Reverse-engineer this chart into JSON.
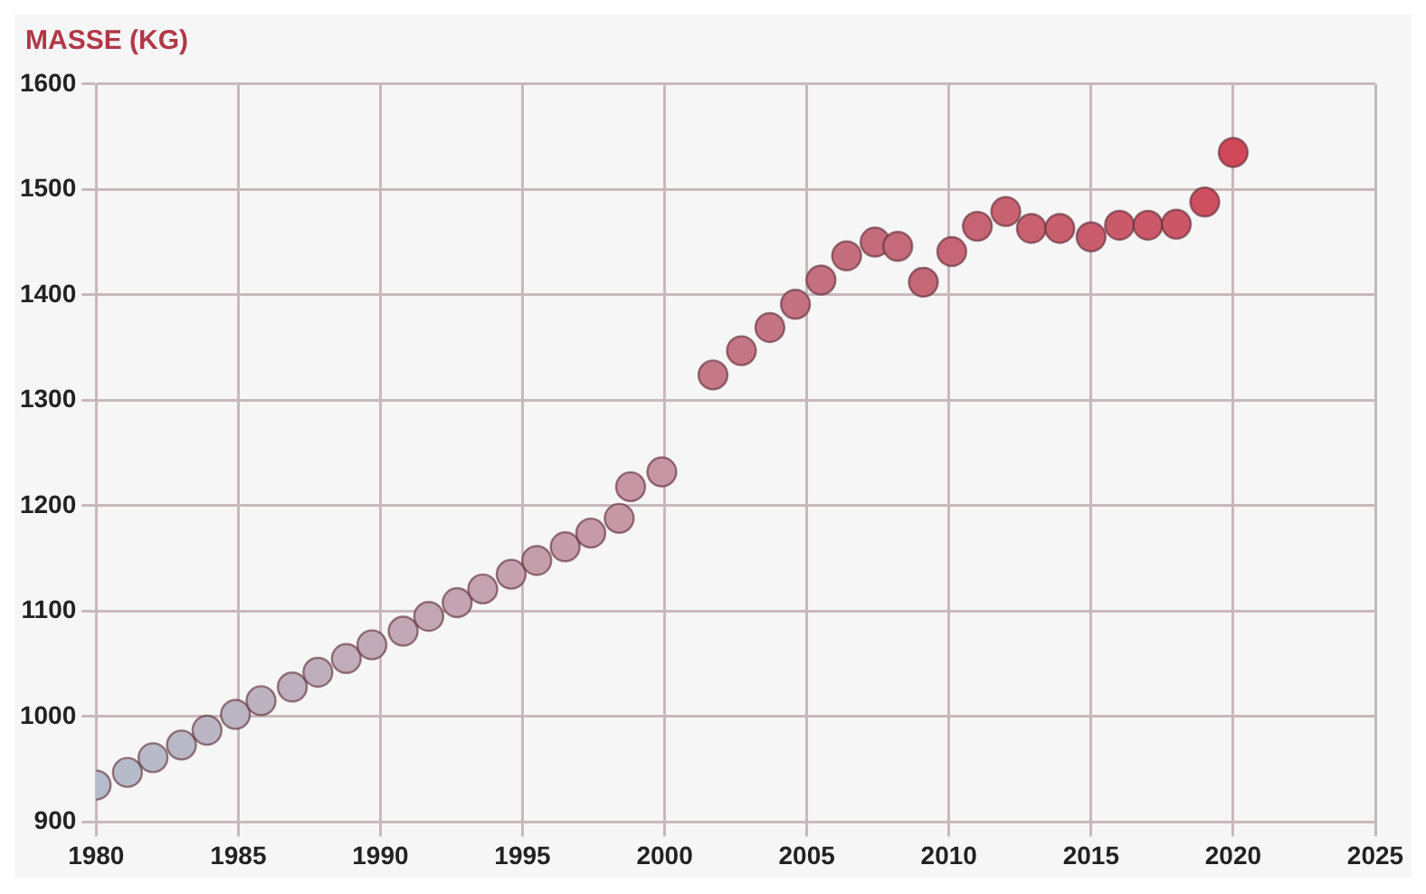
{
  "chart_data": {
    "type": "scatter",
    "ylabel": "MASSE (KG)",
    "x": [
      1980,
      1981.1,
      1982,
      1983,
      1983.9,
      1984.9,
      1985.8,
      1986.9,
      1987.8,
      1988.8,
      1989.7,
      1990.8,
      1991.7,
      1992.7,
      1993.6,
      1994.6,
      1995.5,
      1996.5,
      1997.4,
      1998.4,
      1998.8,
      1999.9,
      2001.7,
      2002.7,
      2003.7,
      2004.6,
      2005.5,
      2006.4,
      2007.4,
      2008.2,
      2009.1,
      2010.1,
      2011,
      2012,
      2012.9,
      2013.9,
      2015,
      2016,
      2017,
      2018,
      2019,
      2020
    ],
    "values": [
      935,
      947,
      961,
      973,
      987,
      1002,
      1015,
      1028,
      1042,
      1055,
      1068,
      1081,
      1095,
      1108,
      1121,
      1135,
      1148,
      1161,
      1174,
      1188,
      1218,
      1232,
      1324,
      1347,
      1369,
      1391,
      1414,
      1437,
      1450,
      1446,
      1412,
      1441,
      1465,
      1479,
      1463,
      1463,
      1455,
      1466,
      1466,
      1467,
      1488,
      1535
    ],
    "colors": [
      "#b4bccc",
      "#b6bbca",
      "#b8bac8",
      "#b9b8c6",
      "#bab6c4",
      "#bbb4c2",
      "#bdb2c0",
      "#beb0be",
      "#bfaebc",
      "#c0acba",
      "#c1aab8",
      "#c2a8b6",
      "#c3a6b4",
      "#c4a4b2",
      "#c4a2b0",
      "#c5a0ae",
      "#c59eac",
      "#c69caa",
      "#c69aa8",
      "#c698a6",
      "#c696a4",
      "#c694a2",
      "#c47888",
      "#c47686",
      "#c47484",
      "#c47282",
      "#c47080",
      "#c46e7e",
      "#c46c7c",
      "#c46a7a",
      "#c46878",
      "#c66676",
      "#c66474",
      "#c86272",
      "#c86070",
      "#c85e6e",
      "#c85c6c",
      "#ca5a6a",
      "#ca5868",
      "#ca5666",
      "#cc5060",
      "#d04858"
    ],
    "xlim": [
      1980,
      2025
    ],
    "xticks": [
      1980,
      1985,
      1990,
      1995,
      2000,
      2005,
      2010,
      2015,
      2020,
      2025
    ],
    "ylim": [
      900,
      1600
    ],
    "yticks": [
      900,
      1000,
      1100,
      1200,
      1300,
      1400,
      1500,
      1600
    ],
    "grid": true,
    "marker": "circle"
  }
}
